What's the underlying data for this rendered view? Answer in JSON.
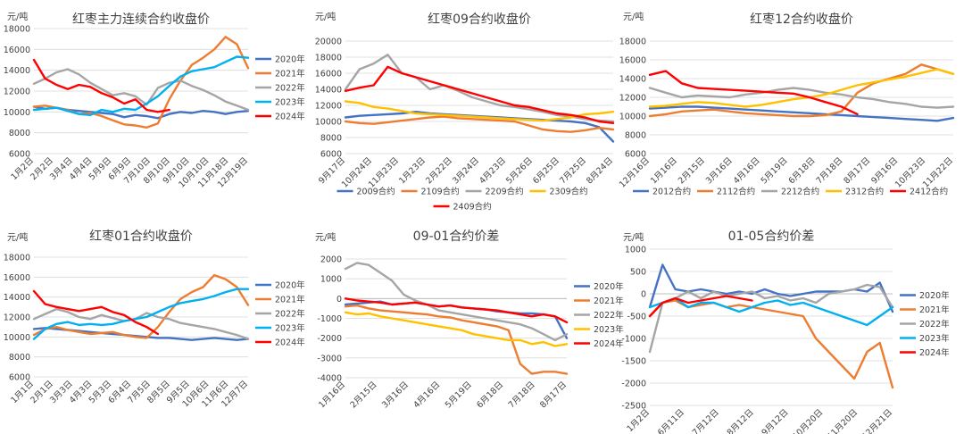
{
  "chart_data": [
    {
      "type": "line",
      "title": "红枣主力连续合约收盘价",
      "ylabel": "元/吨",
      "ylim": [
        6000,
        18000
      ],
      "yticks": [
        6000,
        8000,
        10000,
        12000,
        14000,
        16000,
        18000
      ],
      "x_tick_labels": [
        "1月2日",
        "2月2日",
        "3月4日",
        "4月4日",
        "5月9日",
        "6月9日",
        "7月10日",
        "8月10日",
        "9月10日",
        "10月10日",
        "11月18日",
        "12月19日"
      ],
      "legend_position": "right",
      "series": [
        {
          "name": "2020年",
          "color": "#4472C4",
          "values": [
            10500,
            10300,
            10400,
            10200,
            10100,
            10000,
            9900,
            9800,
            9500,
            9700,
            9600,
            9400,
            9800,
            10000,
            9900,
            10100,
            10000,
            9800,
            10000,
            10100
          ]
        },
        {
          "name": "2021年",
          "color": "#ED7D31",
          "values": [
            10500,
            10600,
            10400,
            10200,
            9800,
            9900,
            9600,
            9200,
            8800,
            8700,
            8500,
            8900,
            11200,
            13000,
            14500,
            15200,
            16000,
            17200,
            16500,
            14200
          ]
        },
        {
          "name": "2022年",
          "color": "#A5A5A5",
          "values": [
            12700,
            13200,
            13800,
            14100,
            13600,
            12800,
            12200,
            11600,
            11800,
            11500,
            10700,
            12300,
            12800,
            13000,
            12500,
            12100,
            11600,
            11000,
            10600,
            10200
          ]
        },
        {
          "name": "2023年",
          "color": "#00B0F0",
          "values": [
            10200,
            10300,
            10400,
            10100,
            9800,
            9700,
            10200,
            10000,
            10300,
            10200,
            10800,
            11500,
            12500,
            13400,
            13900,
            14100,
            14300,
            14800,
            15300,
            15200
          ]
        },
        {
          "name": "2024年",
          "color": "#FF0000",
          "values": [
            15000,
            13200,
            12600,
            12200,
            12600,
            12400,
            11800,
            11400,
            10800,
            11200,
            10200,
            10000,
            10200,
            null,
            null,
            null,
            null,
            null,
            null,
            null
          ]
        }
      ]
    },
    {
      "type": "line",
      "title": "红枣09合约收盘价",
      "ylabel": "元/吨",
      "ylim": [
        6000,
        20000
      ],
      "yticks": [
        6000,
        8000,
        10000,
        12000,
        14000,
        16000,
        18000,
        20000
      ],
      "x_tick_labels": [
        "9月17日",
        "10月24日",
        "11月23日",
        "1月23日",
        "2月22日",
        "3月24日",
        "4月23日",
        "5月26日",
        "6月25日",
        "7月25日",
        "8月24日"
      ],
      "legend_position": "bottom",
      "series": [
        {
          "name": "2009合约",
          "color": "#4472C4",
          "values": [
            10500,
            10700,
            10800,
            10900,
            11000,
            11200,
            11000,
            10900,
            10800,
            10700,
            10600,
            10500,
            10400,
            10300,
            10200,
            10100,
            10000,
            9800,
            9300,
            7500
          ]
        },
        {
          "name": "2109合约",
          "color": "#ED7D31",
          "values": [
            10000,
            9800,
            9700,
            9900,
            10100,
            10300,
            10500,
            10600,
            10400,
            10300,
            10200,
            10100,
            10000,
            9500,
            9000,
            8800,
            8700,
            8900,
            9200,
            9000
          ]
        },
        {
          "name": "2209合约",
          "color": "#A5A5A5",
          "values": [
            14000,
            16500,
            17200,
            18300,
            16000,
            15500,
            14000,
            14500,
            13800,
            13000,
            12500,
            12000,
            11800,
            11500,
            11200,
            10800,
            10600,
            10300,
            10100,
            10000
          ]
        },
        {
          "name": "2309合约",
          "color": "#FFC000",
          "values": [
            12500,
            12300,
            11800,
            11600,
            11300,
            11000,
            10900,
            10800,
            10700,
            10600,
            10500,
            10400,
            10300,
            10200,
            10100,
            10300,
            10500,
            10900,
            11000,
            11200
          ]
        },
        {
          "name": "2409合约",
          "color": "#FF0000",
          "values": [
            13800,
            14200,
            14500,
            16800,
            16000,
            15500,
            15000,
            14500,
            14000,
            13500,
            13000,
            12500,
            12000,
            11800,
            11400,
            11000,
            10800,
            10500,
            10000,
            9800
          ]
        }
      ]
    },
    {
      "type": "line",
      "title": "红枣12合约收盘价",
      "ylabel": "元/吨",
      "ylim": [
        6000,
        18000
      ],
      "yticks": [
        6000,
        8000,
        10000,
        12000,
        14000,
        16000,
        18000
      ],
      "x_tick_labels": [
        "12月16日",
        "1月16日",
        "2月15日",
        "3月16日",
        "4月16日",
        "5月19日",
        "6月18日",
        "7月18日",
        "8月17日",
        "9月16日",
        "10月23日",
        "11月22日"
      ],
      "legend_position": "bottom",
      "series": [
        {
          "name": "2012合约",
          "color": "#4472C4",
          "values": [
            10800,
            10900,
            11000,
            11000,
            10900,
            10800,
            10700,
            10600,
            10500,
            10400,
            10300,
            10200,
            10100,
            10000,
            9900,
            9800,
            9700,
            9600,
            9500,
            9800
          ]
        },
        {
          "name": "2112合约",
          "color": "#ED7D31",
          "values": [
            10000,
            10200,
            10500,
            10600,
            10700,
            10500,
            10300,
            10200,
            10100,
            10000,
            10000,
            10100,
            10500,
            12500,
            13500,
            14000,
            14500,
            15500,
            15000,
            14500
          ]
        },
        {
          "name": "2212合约",
          "color": "#A5A5A5",
          "values": [
            13000,
            12500,
            12000,
            12200,
            12100,
            12000,
            12300,
            12500,
            12800,
            13000,
            12800,
            12500,
            12300,
            12000,
            11800,
            11500,
            11300,
            11000,
            10900,
            11000
          ]
        },
        {
          "name": "2312合约",
          "color": "#FFC000",
          "values": [
            11000,
            11100,
            11300,
            11500,
            11400,
            11200,
            11000,
            11200,
            11500,
            11800,
            12000,
            12300,
            12800,
            13300,
            13600,
            13900,
            14200,
            14600,
            15000,
            14500
          ]
        },
        {
          "name": "2412合约",
          "color": "#FF0000",
          "values": [
            14400,
            14800,
            13500,
            13000,
            12900,
            12800,
            12700,
            12600,
            12500,
            12400,
            12000,
            11500,
            11000,
            10200,
            null,
            null,
            null,
            null,
            null,
            null
          ]
        }
      ]
    },
    {
      "type": "line",
      "title": "红枣01合约收盘价",
      "ylabel": "元/吨",
      "ylim": [
        6000,
        18000
      ],
      "yticks": [
        6000,
        8000,
        10000,
        12000,
        14000,
        16000,
        18000
      ],
      "x_tick_labels": [
        "1月1日",
        "2月1日",
        "3月3日",
        "4月3日",
        "5月3日",
        "6月4日",
        "7月5日",
        "8月5日",
        "9月5日",
        "10月6日",
        "11月6日",
        "12月7日"
      ],
      "legend_position": "right",
      "series": [
        {
          "name": "2020年",
          "color": "#4472C4",
          "values": [
            10800,
            10900,
            10800,
            10700,
            10600,
            10500,
            10400,
            10300,
            10200,
            10100,
            10000,
            9900,
            9900,
            9800,
            9700,
            9800,
            9900,
            9800,
            9700,
            9800
          ]
        },
        {
          "name": "2021年",
          "color": "#ED7D31",
          "values": [
            10200,
            10800,
            11000,
            10700,
            10500,
            10300,
            10400,
            10500,
            10200,
            10000,
            9900,
            11000,
            12500,
            13800,
            14500,
            15000,
            16200,
            15800,
            15000,
            13200
          ]
        },
        {
          "name": "2022年",
          "color": "#A5A5A5",
          "values": [
            11800,
            12300,
            12800,
            12500,
            12000,
            11800,
            12200,
            11900,
            11600,
            11800,
            12400,
            12000,
            11800,
            11400,
            11200,
            11000,
            10800,
            10500,
            10200,
            9800
          ]
        },
        {
          "name": "2023年",
          "color": "#00B0F0",
          "values": [
            9800,
            10800,
            11300,
            11500,
            11200,
            11300,
            11200,
            11300,
            11600,
            11800,
            12000,
            12500,
            13000,
            13400,
            13600,
            13800,
            14100,
            14500,
            14800,
            14800
          ]
        },
        {
          "name": "2024年",
          "color": "#FF0000",
          "values": [
            14600,
            13300,
            13000,
            12800,
            12600,
            12800,
            13000,
            12500,
            12200,
            11500,
            11000,
            10300,
            null,
            null,
            null,
            null,
            null,
            null,
            null,
            null
          ]
        }
      ]
    },
    {
      "type": "line",
      "title": "09-01合约价差",
      "ylabel": "元/吨",
      "ylim": [
        -4000,
        2000
      ],
      "yticks": [
        -4000,
        -3000,
        -2000,
        -1000,
        0,
        1000,
        2000
      ],
      "x_tick_labels": [
        "1月16日",
        "2月15日",
        "3月16日",
        "4月16日",
        "5月19日",
        "6月18日",
        "7月18日",
        "8月17日"
      ],
      "legend_position": "right",
      "series": [
        {
          "name": "2020年",
          "color": "#4472C4",
          "values": [
            -300,
            -250,
            -200,
            -150,
            -300,
            -250,
            -200,
            -300,
            -400,
            -350,
            -450,
            -500,
            -550,
            -650,
            -700,
            -750,
            -750,
            -800,
            -900,
            -2000
          ]
        },
        {
          "name": "2021年",
          "color": "#ED7D31",
          "values": [
            -400,
            -350,
            -500,
            -600,
            -650,
            -700,
            -750,
            -800,
            -900,
            -950,
            -1100,
            -1200,
            -1300,
            -1400,
            -1600,
            -3300,
            -3800,
            -3700,
            -3700,
            -3800
          ]
        },
        {
          "name": "2022年",
          "color": "#A5A5A5",
          "values": [
            1500,
            1800,
            1700,
            1300,
            900,
            200,
            -100,
            -300,
            -600,
            -700,
            -800,
            -900,
            -1000,
            -1100,
            -1200,
            -1300,
            -1500,
            -1800,
            -2100,
            -1800
          ]
        },
        {
          "name": "2023年",
          "color": "#FFC000",
          "values": [
            -700,
            -800,
            -750,
            -900,
            -1000,
            -1100,
            -1200,
            -1300,
            -1400,
            -1500,
            -1600,
            -1800,
            -1900,
            -2000,
            -2100,
            -2100,
            -2300,
            -2200,
            -2400,
            -2300
          ]
        },
        {
          "name": "2024年",
          "color": "#FF0000",
          "values": [
            0,
            -100,
            -150,
            -200,
            -300,
            -250,
            -200,
            -300,
            -400,
            -350,
            -450,
            -500,
            -550,
            -600,
            -700,
            -800,
            -900,
            -800,
            -900,
            -1200
          ]
        }
      ]
    },
    {
      "type": "line",
      "title": "01-05合约价差",
      "ylabel": "元/吨",
      "ylim": [
        -2500,
        1000
      ],
      "yticks": [
        -2500,
        -2000,
        -1500,
        -1000,
        -500,
        0,
        500,
        1000
      ],
      "x_tick_labels": [
        "1月2日",
        "6月11日",
        "7月12日",
        "8月12日",
        "9月12日",
        "10月20日",
        "11月20日",
        "12月21日"
      ],
      "legend_position": "right",
      "series": [
        {
          "name": "2020年",
          "color": "#4472C4",
          "values": [
            -300,
            650,
            100,
            50,
            100,
            50,
            0,
            50,
            0,
            100,
            0,
            -50,
            0,
            50,
            50,
            50,
            100,
            50,
            250,
            -400
          ]
        },
        {
          "name": "2021年",
          "color": "#ED7D31",
          "values": [
            -500,
            -200,
            -150,
            -300,
            -250,
            -200,
            -300,
            -250,
            -300,
            -350,
            -400,
            -450,
            -500,
            -1000,
            -1300,
            -1600,
            -1900,
            -1300,
            -1100,
            -2100
          ]
        },
        {
          "name": "2022年",
          "color": "#A5A5A5",
          "values": [
            -1300,
            -200,
            -100,
            50,
            -100,
            50,
            -50,
            0,
            50,
            -100,
            -50,
            -150,
            -100,
            -200,
            0,
            50,
            100,
            200,
            150,
            -300
          ]
        },
        {
          "name": "2023年",
          "color": "#00B0F0",
          "values": [
            -300,
            -200,
            -100,
            -300,
            -200,
            -200,
            -300,
            -400,
            -300,
            -200,
            -150,
            -250,
            -200,
            -300,
            -400,
            -500,
            -600,
            -700,
            -500,
            -300
          ]
        },
        {
          "name": "2024年",
          "color": "#FF0000",
          "values": [
            -500,
            -200,
            -100,
            -200,
            -150,
            -100,
            -50,
            -100,
            -150,
            null,
            null,
            null,
            null,
            null,
            null,
            null,
            null,
            null,
            null,
            null
          ]
        }
      ]
    }
  ]
}
